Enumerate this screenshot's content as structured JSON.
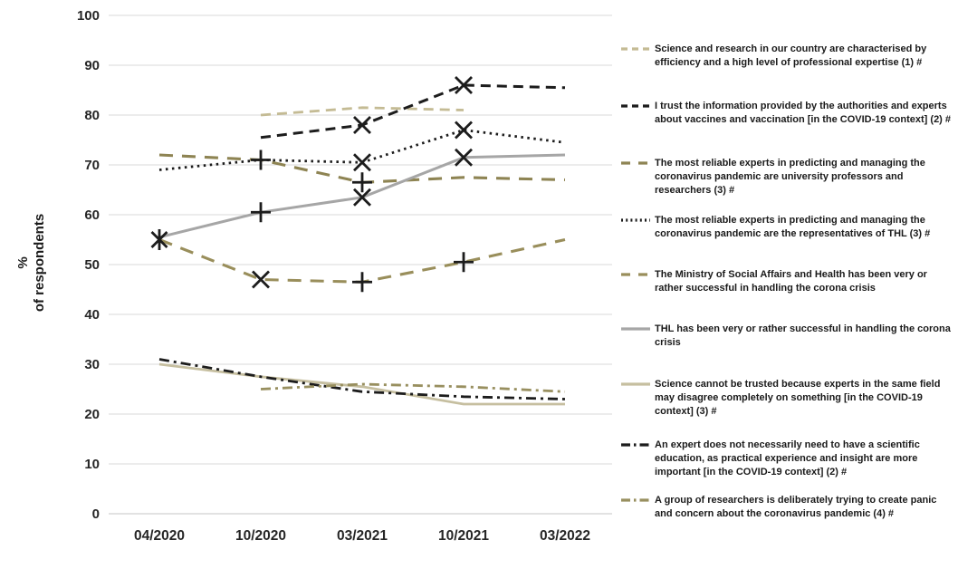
{
  "chart_data": {
    "type": "line",
    "title": "",
    "ylabel": "% of respondents",
    "ylabel_lines": [
      "%",
      "of respondents"
    ],
    "xlabel": "",
    "categories": [
      "04/2020",
      "10/2020",
      "03/2021",
      "10/2021",
      "03/2022"
    ],
    "ylim": [
      0,
      100
    ],
    "ytick_step": 10,
    "grid": "horizontal",
    "legend_position": "right",
    "marker_color": "#1c1c1c",
    "gridline_color": "#d9d9d9",
    "series": [
      {
        "key": "science-research-efficiency",
        "name": "Science and research in our country are characterised by efficiency and a high level of professional expertise (1) #",
        "color": "#c4bb94",
        "style": "dashed",
        "width": 2.8,
        "values": [
          null,
          80,
          81.5,
          81,
          null
        ],
        "markers": [
          null,
          null,
          null,
          null,
          null
        ]
      },
      {
        "key": "trust-authorities-vaccines",
        "name": "I trust the information provided by the authorities and experts about vaccines and vaccination [in the COVID-19 context] (2)  #",
        "color": "#1c1c1c",
        "style": "dashed",
        "width": 3,
        "values": [
          null,
          75.5,
          78,
          86,
          85.5
        ],
        "markers": [
          null,
          null,
          "x",
          "x",
          null
        ]
      },
      {
        "key": "reliable-experts-professors",
        "name": "The most reliable experts in predicting and managing the coronavirus pandemic are university professors and researchers (3) #",
        "color": "#8e8453",
        "style": "longdash",
        "width": 3.1,
        "values": [
          72,
          71,
          66.5,
          67.5,
          67
        ],
        "markers": [
          null,
          "plus",
          "plus",
          null,
          null
        ]
      },
      {
        "key": "reliable-experts-thl",
        "name": "The most reliable experts in predicting and managing the coronavirus pandemic are the representatives of THL (3) #",
        "color": "#1c1c1c",
        "style": "dotted",
        "width": 2.8,
        "values": [
          69,
          71,
          70.5,
          77,
          74.5
        ],
        "markers": [
          null,
          null,
          "x",
          "x",
          null
        ]
      },
      {
        "key": "ministry-successful",
        "name": "The Ministry of Social Affairs and Health has been very or rather successful in handling the corona crisis",
        "color": "#998e5b",
        "style": "longdash",
        "width": 3.1,
        "values": [
          55,
          47,
          46.5,
          50.5,
          55
        ],
        "markers": [
          "star",
          "x",
          "plus",
          "plus",
          null
        ]
      },
      {
        "key": "thl-successful",
        "name": "THL has been very or rather successful in handling the corona crisis",
        "color": "#a6a6a6",
        "style": "solid",
        "width": 3,
        "values": [
          55.5,
          60.5,
          63.5,
          71.5,
          72
        ],
        "markers": [
          null,
          "plus",
          "x",
          "x",
          null
        ]
      },
      {
        "key": "science-cannot-be-trusted",
        "name": "Science cannot be trusted because experts in the same field may disagree completely on something [in the COVID-19 context] (3) #",
        "color": "#c6bfa0",
        "style": "solid",
        "width": 2.8,
        "values": [
          30,
          27.5,
          25.5,
          22,
          22
        ],
        "markers": [
          null,
          null,
          null,
          null,
          null
        ]
      },
      {
        "key": "expert-no-scientific-education",
        "name": "An expert does not necessarily need to have a scientific education, as practical experience and insight are more important [in the COVID-19 context] (2) #",
        "color": "#1c1c1c",
        "style": "dashdot",
        "width": 2.8,
        "values": [
          31,
          27.5,
          24.5,
          23.5,
          23
        ],
        "markers": [
          null,
          null,
          null,
          null,
          null
        ]
      },
      {
        "key": "researchers-create-panic",
        "name": "A group of researchers is deliberately trying to create panic and concern about the coronavirus pandemic (4) #",
        "color": "#988f5f",
        "style": "dashdot",
        "width": 2.8,
        "values": [
          null,
          25,
          26,
          25.5,
          24.5
        ],
        "markers": [
          null,
          null,
          null,
          null,
          null
        ]
      }
    ]
  }
}
